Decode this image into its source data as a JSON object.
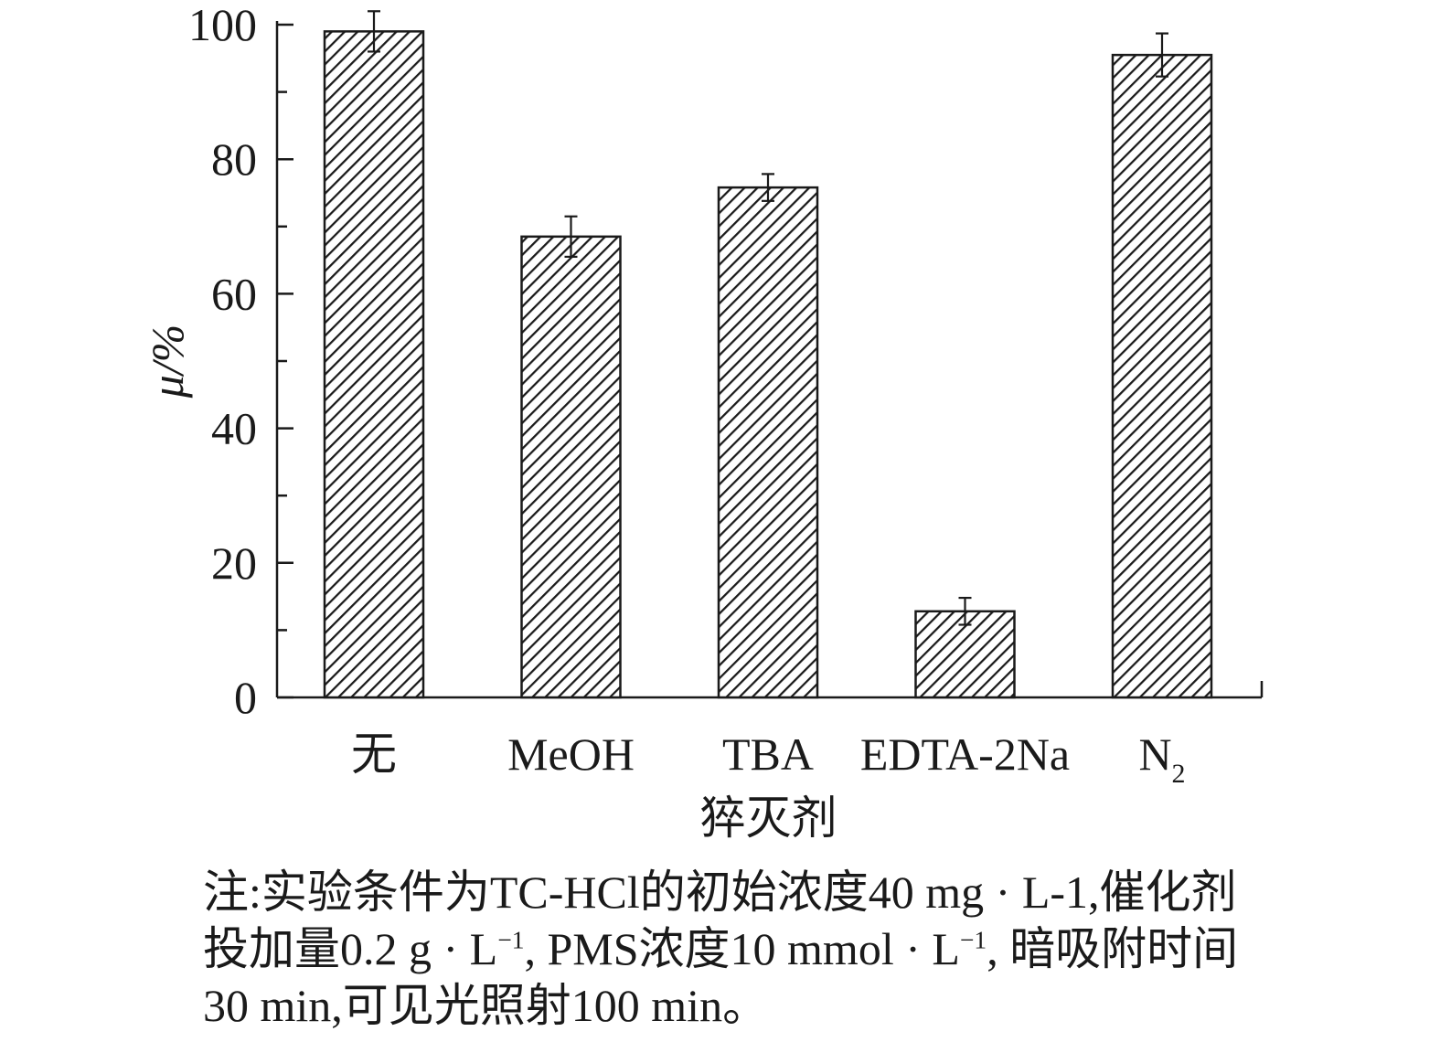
{
  "chart_data": {
    "type": "bar",
    "categories": [
      "无",
      "MeOH",
      "TBA",
      "EDTA-2Na",
      "N"
    ],
    "category_subscripts": [
      "",
      "",
      "",
      "",
      "2"
    ],
    "values": [
      99,
      68.5,
      75.8,
      12.8,
      95.5
    ],
    "error": [
      3.0,
      3.0,
      2.0,
      2.0,
      3.2
    ],
    "xlabel": "猝灭剂",
    "ylabel": "μ/%",
    "ylim": [
      0,
      100
    ],
    "yticks": [
      0,
      20,
      40,
      60,
      80,
      100
    ],
    "bar_fill": "diagonal hatch",
    "hatch_color": "#1a1a1a",
    "grid": false
  },
  "note": {
    "line1": "注:实验条件为TC-HCl的初始浓度40 mg · L-1,催化剂",
    "line2a": "投加量0.2 g · L",
    "line2_sup1": "−1",
    "line2b": ", PMS浓度10 mmol · L",
    "line2_sup2": "−1",
    "line2c": ", 暗吸附时间",
    "line3": "30 min,可见光照射100 min。"
  }
}
